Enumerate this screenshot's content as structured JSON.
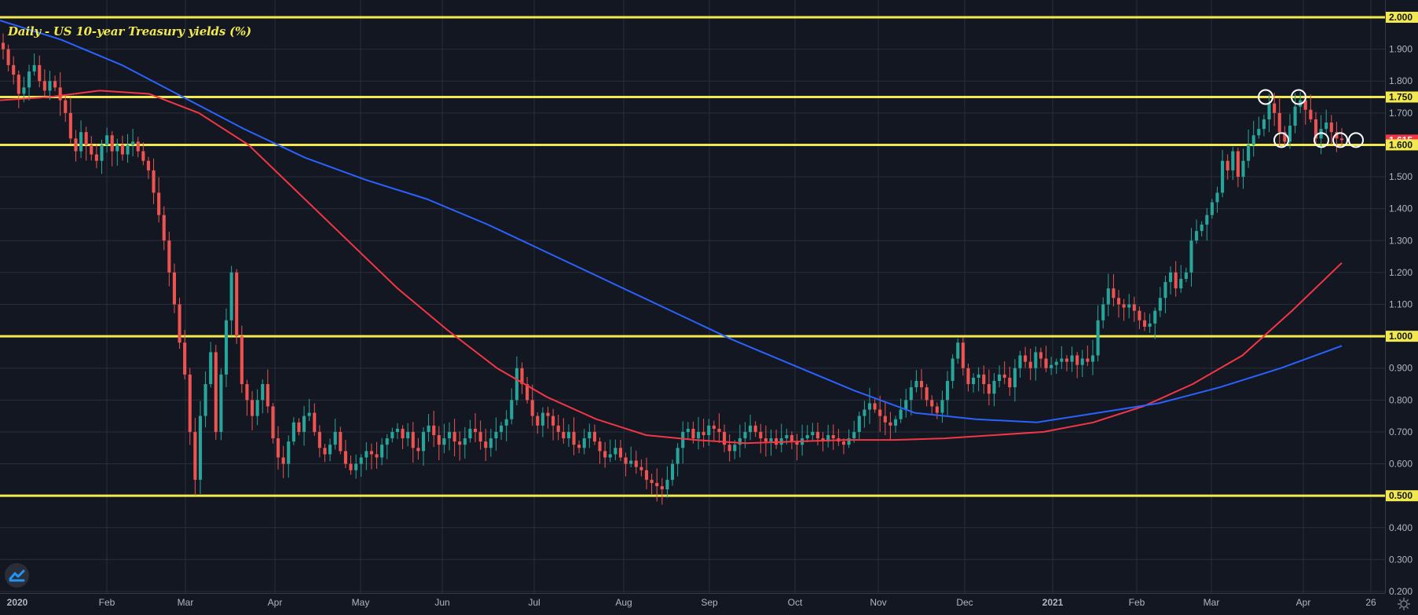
{
  "chart_data": {
    "type": "candlestick",
    "title": "Daily - US 10-year Treasury yields (%)",
    "x_tick_labels": [
      "2020",
      "Feb",
      "Mar",
      "Apr",
      "May",
      "Jun",
      "Jul",
      "Aug",
      "Sep",
      "Oct",
      "Nov",
      "Dec",
      "2021",
      "Feb",
      "Mar",
      "Apr",
      "26"
    ],
    "y_tick_labels": [
      "2.000",
      "1.900",
      "1.800",
      "1.750",
      "1.700",
      "1.615",
      "1.600",
      "1.500",
      "1.400",
      "1.300",
      "1.200",
      "1.100",
      "1.000",
      "0.900",
      "0.800",
      "0.700",
      "0.600",
      "0.500",
      "0.400",
      "0.300",
      "0.200"
    ],
    "ylim": [
      0.19,
      2.05
    ],
    "last_price": "1.615",
    "horizontal_levels": [
      2.0,
      1.75,
      1.6,
      1.0,
      0.5
    ],
    "level_labels": [
      "2.000",
      "1.750",
      "1.600",
      "1.000",
      "0.500"
    ],
    "closes": [
      1.9,
      1.85,
      1.82,
      1.76,
      1.78,
      1.83,
      1.85,
      1.8,
      1.77,
      1.8,
      1.78,
      1.74,
      1.7,
      1.62,
      1.58,
      1.64,
      1.6,
      1.57,
      1.55,
      1.6,
      1.63,
      1.58,
      1.6,
      1.57,
      1.6,
      1.61,
      1.58,
      1.55,
      1.52,
      1.45,
      1.38,
      1.3,
      1.2,
      1.1,
      0.98,
      0.88,
      0.7,
      0.55,
      0.75,
      0.85,
      0.95,
      0.7,
      0.88,
      1.05,
      1.2,
      1.0,
      0.85,
      0.8,
      0.75,
      0.8,
      0.85,
      0.78,
      0.68,
      0.62,
      0.6,
      0.67,
      0.73,
      0.7,
      0.75,
      0.76,
      0.7,
      0.65,
      0.63,
      0.66,
      0.7,
      0.64,
      0.6,
      0.58,
      0.6,
      0.62,
      0.64,
      0.63,
      0.62,
      0.66,
      0.68,
      0.7,
      0.71,
      0.68,
      0.7,
      0.65,
      0.64,
      0.7,
      0.72,
      0.69,
      0.66,
      0.68,
      0.7,
      0.67,
      0.66,
      0.68,
      0.71,
      0.7,
      0.67,
      0.65,
      0.68,
      0.7,
      0.72,
      0.74,
      0.8,
      0.9,
      0.85,
      0.8,
      0.75,
      0.72,
      0.76,
      0.75,
      0.72,
      0.7,
      0.68,
      0.7,
      0.66,
      0.65,
      0.68,
      0.7,
      0.67,
      0.64,
      0.62,
      0.63,
      0.65,
      0.62,
      0.6,
      0.61,
      0.59,
      0.58,
      0.55,
      0.54,
      0.53,
      0.52,
      0.55,
      0.6,
      0.65,
      0.7,
      0.71,
      0.68,
      0.7,
      0.69,
      0.72,
      0.71,
      0.7,
      0.66,
      0.64,
      0.66,
      0.68,
      0.7,
      0.72,
      0.7,
      0.68,
      0.67,
      0.68,
      0.66,
      0.68,
      0.69,
      0.67,
      0.66,
      0.68,
      0.69,
      0.7,
      0.68,
      0.67,
      0.69,
      0.68,
      0.67,
      0.66,
      0.68,
      0.7,
      0.75,
      0.77,
      0.79,
      0.77,
      0.75,
      0.73,
      0.72,
      0.74,
      0.77,
      0.8,
      0.84,
      0.86,
      0.84,
      0.8,
      0.78,
      0.76,
      0.8,
      0.86,
      0.93,
      0.98,
      0.9,
      0.85,
      0.87,
      0.88,
      0.85,
      0.82,
      0.86,
      0.88,
      0.87,
      0.84,
      0.9,
      0.94,
      0.92,
      0.9,
      0.95,
      0.93,
      0.9,
      0.91,
      0.92,
      0.93,
      0.92,
      0.94,
      0.91,
      0.93,
      0.92,
      0.94,
      1.05,
      1.1,
      1.15,
      1.12,
      1.1,
      1.09,
      1.1,
      1.08,
      1.05,
      1.03,
      1.04,
      1.08,
      1.12,
      1.17,
      1.2,
      1.15,
      1.18,
      1.2,
      1.3,
      1.33,
      1.35,
      1.38,
      1.42,
      1.45,
      1.55,
      1.52,
      1.58,
      1.5,
      1.55,
      1.6,
      1.63,
      1.65,
      1.68,
      1.73,
      1.7,
      1.64,
      1.61,
      1.66,
      1.72,
      1.74,
      1.71,
      1.68,
      1.62,
      1.65,
      1.67,
      1.64,
      1.62,
      1.615
    ],
    "series": [
      {
        "color": "#f23645",
        "values": [
          1.74,
          1.75,
          1.77,
          1.76,
          1.7,
          1.6,
          1.45,
          1.3,
          1.15,
          1.02,
          0.9,
          0.81,
          0.74,
          0.69,
          0.675,
          0.665,
          0.67,
          0.675,
          0.675,
          0.68,
          0.69,
          0.7,
          0.73,
          0.78,
          0.85,
          0.94,
          1.08,
          1.23
        ]
      },
      {
        "color": "#2962ff",
        "values": [
          1.99,
          1.93,
          1.85,
          1.75,
          1.65,
          1.56,
          1.49,
          1.43,
          1.35,
          1.26,
          1.17,
          1.08,
          0.99,
          0.91,
          0.83,
          0.76,
          0.74,
          0.73,
          0.76,
          0.79,
          0.84,
          0.9,
          0.97
        ]
      }
    ],
    "grid": true,
    "annotation_circles": 6
  },
  "colors": {
    "background": "#131722",
    "grid": "#2a2e39",
    "up": "#26a69a",
    "down": "#ef5350",
    "level_line": "#f2e94e",
    "axis_text": "#b2b5be",
    "last_price_bg": "#f23645"
  },
  "icons": {
    "logo": "tradingview-logo-icon",
    "settings": "gear-icon"
  }
}
